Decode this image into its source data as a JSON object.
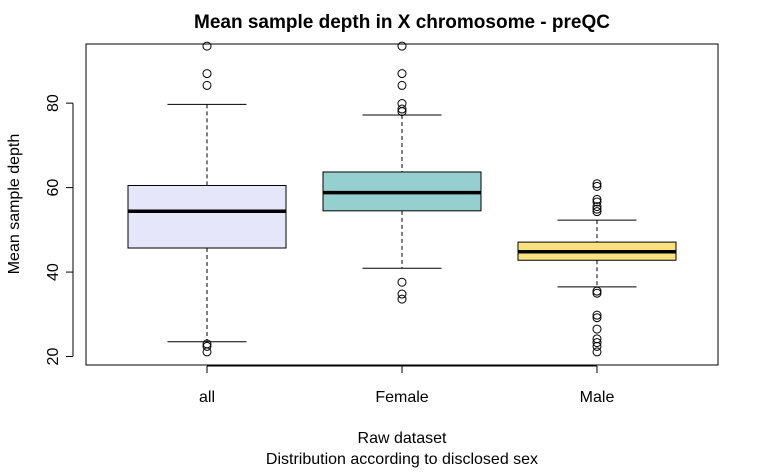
{
  "chart_data": {
    "type": "boxplot",
    "title": "Mean sample depth in X chromosome - preQC",
    "xlabel": "Raw dataset",
    "subtitle": "Distribution according to disclosed sex",
    "ylabel": "Mean sample depth",
    "ylim": [
      18,
      94
    ],
    "y_ticks": [
      20,
      40,
      60,
      80
    ],
    "categories": [
      "all",
      "Female",
      "Male"
    ],
    "grid": false,
    "legend": "none",
    "series": [
      {
        "category": "all",
        "color": "#E6E6FA",
        "whisker_low": 23.5,
        "q1": 45.7,
        "median": 54.4,
        "q3": 60.5,
        "whisker_high": 79.7,
        "outliers": [
          21.1,
          22.4,
          23.0,
          84.2,
          87.0,
          93.5
        ]
      },
      {
        "category": "Female",
        "color": "#96CFCF",
        "whisker_low": 40.9,
        "q1": 54.5,
        "median": 58.8,
        "q3": 63.7,
        "whisker_high": 77.2,
        "outliers": [
          33.6,
          34.8,
          37.6,
          78.0,
          78.6,
          79.9,
          84.2,
          87.0,
          93.5
        ]
      },
      {
        "category": "Male",
        "color": "#F7E27F",
        "whisker_low": 36.5,
        "q1": 42.8,
        "median": 44.8,
        "q3": 47.1,
        "whisker_high": 52.3,
        "outliers": [
          21.1,
          22.4,
          23.3,
          24.2,
          26.5,
          29.2,
          29.8,
          35.0,
          35.5,
          54.3,
          54.9,
          55.5,
          56.6,
          57.2,
          60.3,
          60.9
        ]
      }
    ]
  }
}
